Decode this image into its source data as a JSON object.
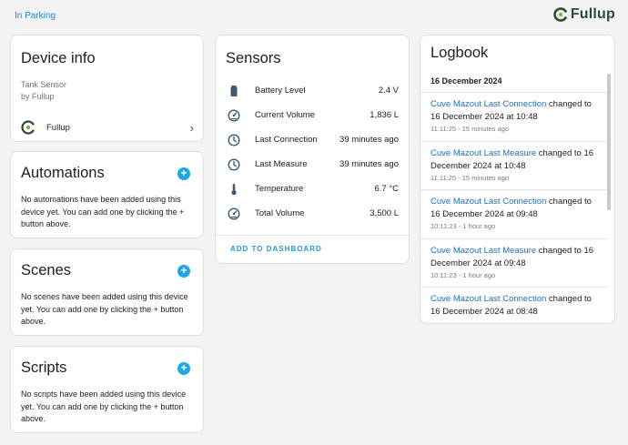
{
  "breadcrumb": "In Parking",
  "brand": {
    "name": "Fullup",
    "color": "#2b4a3a",
    "accent": "#7cb342"
  },
  "device_info": {
    "title": "Device info",
    "model": "Tank Sensor",
    "by": "by Fullup",
    "manufacturer": "Fullup",
    "manufacturer_icon": "fullup-logo-icon",
    "chevron_icon": "chevron-right-icon"
  },
  "automations": {
    "title": "Automations",
    "body": "No automations have been added using this device yet. You can add one by clicking the + button above."
  },
  "scenes": {
    "title": "Scenes",
    "body": "No scenes have been added using this device yet. You can add one by clicking the + button above."
  },
  "scripts": {
    "title": "Scripts",
    "body": "No scripts have been added using this device yet. You can add one by clicking the + button above."
  },
  "sensors": {
    "title": "Sensors",
    "items": [
      {
        "name": "Battery Level",
        "value": "2.4 V",
        "icon": "battery-icon"
      },
      {
        "name": "Current Volume",
        "value": "1,836 L",
        "icon": "gauge-icon"
      },
      {
        "name": "Last Connection",
        "value": "39 minutes ago",
        "icon": "clock-icon"
      },
      {
        "name": "Last Measure",
        "value": "39 minutes ago",
        "icon": "clock-icon"
      },
      {
        "name": "Temperature",
        "value": "6.7 °C",
        "icon": "thermometer-icon"
      },
      {
        "name": "Total Volume",
        "value": "3,500 L",
        "icon": "gauge-icon"
      }
    ],
    "add_to_dashboard": "ADD TO DASHBOARD"
  },
  "logbook": {
    "title": "Logbook",
    "date": "16 December 2024",
    "entries": [
      {
        "entity": "Cuve Mazout Last Connection",
        "message": " changed to 16 December 2024 at 10:48",
        "time": "11:11:25 - 15 minutes ago"
      },
      {
        "entity": "Cuve Mazout Last Measure",
        "message": " changed to 16 December 2024 at 10:48",
        "time": "11:11:25 - 15 minutes ago"
      },
      {
        "entity": "Cuve Mazout Last Connection",
        "message": " changed to 16 December 2024 at 09:48",
        "time": "10:11:23 - 1 hour ago"
      },
      {
        "entity": "Cuve Mazout Last Measure",
        "message": " changed to 16 December 2024 at 09:48",
        "time": "10:11:23 - 1 hour ago"
      },
      {
        "entity": "Cuve Mazout Last Connection",
        "message": " changed to 16 December 2024 at 08:48",
        "time": ""
      }
    ]
  },
  "colors": {
    "accent": "#1ea7e8",
    "link": "#1e6fb8",
    "background": "#f3f3f3"
  }
}
